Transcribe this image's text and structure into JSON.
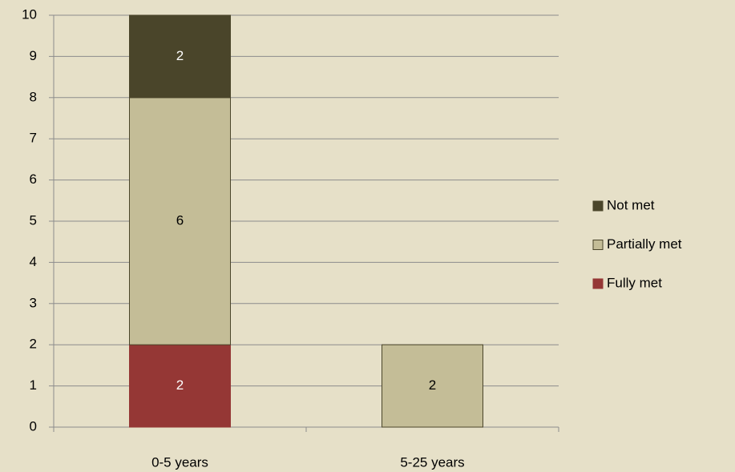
{
  "chart_data": {
    "type": "stacked_bar",
    "categories": [
      "0-5 years",
      "5-25 years"
    ],
    "series": [
      {
        "name": "Fully met",
        "color": "#953735",
        "values": [
          2,
          0
        ]
      },
      {
        "name": "Partially met",
        "color": "#c4bd97",
        "values": [
          6,
          2
        ]
      },
      {
        "name": "Not met",
        "color": "#4a452a",
        "values": [
          2,
          0
        ]
      }
    ],
    "ylim": [
      0,
      10
    ],
    "yticks": [
      0,
      1,
      2,
      3,
      4,
      5,
      6,
      7,
      8,
      9,
      10
    ],
    "grid": true,
    "legend": "right"
  }
}
